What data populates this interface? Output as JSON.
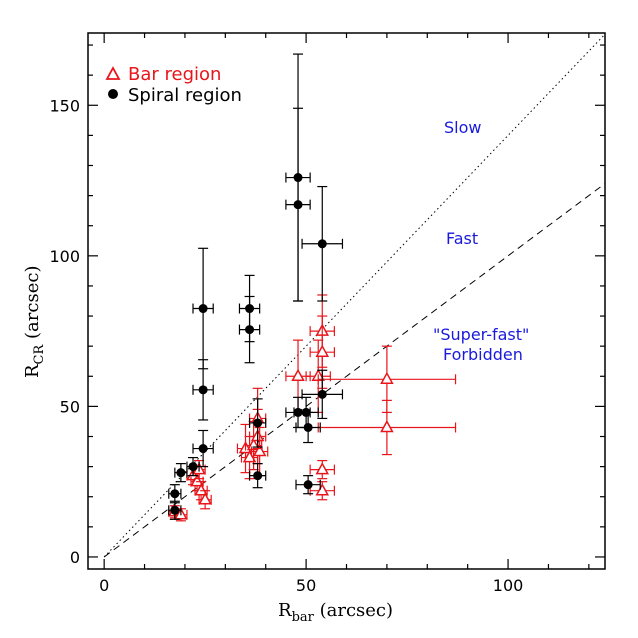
{
  "chart_data": {
    "type": "scatter",
    "xlim": [
      -4,
      124
    ],
    "ylim": [
      -4,
      174
    ],
    "xticks": [
      0,
      50,
      100
    ],
    "yticks": [
      0,
      50,
      100,
      150
    ],
    "xlabel_main": "R",
    "xlabel_sub": "bar",
    "xlabel_unit": " (arcsec)",
    "ylabel_main": "R",
    "ylabel_sub": "CR",
    "ylabel_unit": " (arcsec)",
    "colors": {
      "bar": "#e8161b",
      "spiral": "#000000",
      "annotation": "#1a1adf"
    },
    "legend": {
      "bar": {
        "label": "Bar region",
        "symbol": "open-triangle"
      },
      "spiral": {
        "label": "Spiral region",
        "symbol": "filled-circle"
      }
    },
    "annotations": {
      "slow": "Slow",
      "fast": "Fast",
      "superfast": "\"Super-fast\"",
      "forbidden": "Forbidden"
    },
    "lines": [
      {
        "name": "ratio-1.0",
        "slope": 1.0,
        "style": "dashed"
      },
      {
        "name": "ratio-1.4",
        "slope": 1.4,
        "style": "dotted"
      }
    ],
    "series": [
      {
        "name": "Bar region",
        "points": [
          {
            "x": 17.5,
            "y": 15,
            "xerr": 1.5,
            "yerr": 2
          },
          {
            "x": 19,
            "y": 14,
            "xerr": 1.5,
            "yerr": 2
          },
          {
            "x": 22,
            "y": 27,
            "xerr": 1.5,
            "yerr": 3
          },
          {
            "x": 23,
            "y": 25,
            "xerr": 1.5,
            "yerr": 3
          },
          {
            "x": 23.5,
            "y": 29,
            "xerr": 1.5,
            "yerr": 3
          },
          {
            "x": 24,
            "y": 22,
            "xerr": 1.5,
            "yerr": 3
          },
          {
            "x": 25,
            "y": 19,
            "xerr": 1.5,
            "yerr": 3
          },
          {
            "x": 35,
            "y": 36,
            "xerr": 2,
            "yerr": 8
          },
          {
            "x": 36,
            "y": 33,
            "xerr": 2,
            "yerr": 7
          },
          {
            "x": 37,
            "y": 37,
            "xerr": 2,
            "yerr": 8
          },
          {
            "x": 38,
            "y": 40,
            "xerr": 2,
            "yerr": 9
          },
          {
            "x": 38.5,
            "y": 35,
            "xerr": 2,
            "yerr": 8
          },
          {
            "x": 38,
            "y": 46,
            "xerr": 2,
            "yerr": 10
          },
          {
            "x": 48,
            "y": 60,
            "xerr": 3,
            "yerr": 12
          },
          {
            "x": 53,
            "y": 60,
            "xerr": 3,
            "yerr": 12
          },
          {
            "x": 54,
            "y": 75,
            "xerr": 3,
            "yerr": 12
          },
          {
            "x": 54,
            "y": 68,
            "xerr": 3,
            "yerr": 12
          },
          {
            "x": 54,
            "y": 29,
            "xerr": 3,
            "yerr": 3
          },
          {
            "x": 54,
            "y": 22,
            "xerr": 3,
            "yerr": 3
          },
          {
            "x": 70,
            "y": 59,
            "xerr": 17,
            "yerr": 11
          },
          {
            "x": 70,
            "y": 43,
            "xerr": 17,
            "yerr": 9
          }
        ]
      },
      {
        "name": "Spiral region",
        "points": [
          {
            "x": 17.5,
            "y": 15.5,
            "xerr": 1.5,
            "yerr": 3
          },
          {
            "x": 17.5,
            "y": 21,
            "xerr": 1.5,
            "yerr": 3
          },
          {
            "x": 19,
            "y": 28,
            "xerr": 1.5,
            "yerr": 3
          },
          {
            "x": 22,
            "y": 30,
            "xerr": 1.5,
            "yerr": 3
          },
          {
            "x": 24.5,
            "y": 82.5,
            "xerr": 2.5,
            "yerr": 20
          },
          {
            "x": 24.5,
            "y": 55.5,
            "xerr": 2.5,
            "yerr": 10
          },
          {
            "x": 24.5,
            "y": 36,
            "xerr": 2.5,
            "yerr": 6
          },
          {
            "x": 36,
            "y": 82.5,
            "xerr": 2.5,
            "yerr": 11
          },
          {
            "x": 36,
            "y": 75.5,
            "xerr": 2.5,
            "yerr": 11
          },
          {
            "x": 38,
            "y": 44.5,
            "xerr": 2,
            "yerr": 8
          },
          {
            "x": 38,
            "y": 27,
            "xerr": 2,
            "yerr": 4
          },
          {
            "x": 48,
            "y": 126,
            "xerr": 3,
            "yerr": 41
          },
          {
            "x": 48,
            "y": 117,
            "xerr": 3,
            "yerr": 32
          },
          {
            "x": 48,
            "y": 48,
            "xerr": 3,
            "yerr": 5
          },
          {
            "x": 50,
            "y": 48,
            "xerr": 3,
            "yerr": 5
          },
          {
            "x": 50.5,
            "y": 43,
            "xerr": 3,
            "yerr": 5
          },
          {
            "x": 50.5,
            "y": 24,
            "xerr": 3,
            "yerr": 3
          },
          {
            "x": 54,
            "y": 104,
            "xerr": 5,
            "yerr": 19
          },
          {
            "x": 54,
            "y": 54,
            "xerr": 5,
            "yerr": 8
          }
        ]
      }
    ]
  }
}
